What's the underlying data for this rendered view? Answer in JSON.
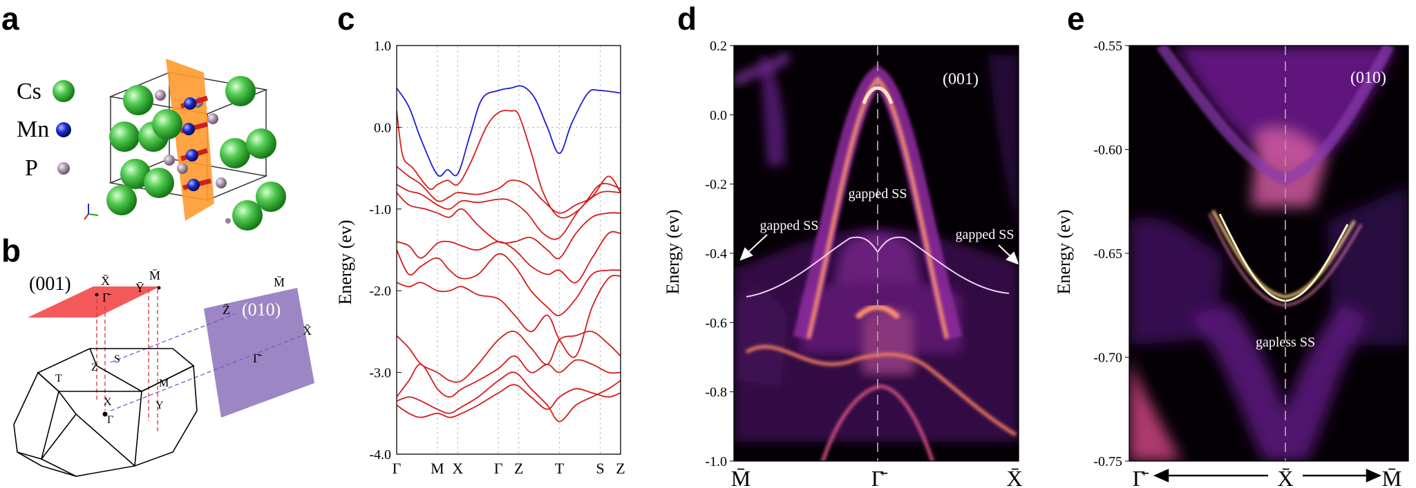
{
  "panel_labels": {
    "a": "a",
    "b": "b",
    "c": "c",
    "d": "d",
    "e": "e"
  },
  "panel_a": {
    "legend": [
      {
        "label": "Cs",
        "color": "#3cb83c"
      },
      {
        "label": "Mn",
        "color": "#1c2ccc"
      },
      {
        "label": "P",
        "color": "#b098b0"
      }
    ],
    "plane_color": "#ff9a2e",
    "moment_color": "#cc2020"
  },
  "panel_b": {
    "surface_001": {
      "label": "(001)",
      "kpoints": [
        "X̄",
        "Ȳ",
        "M̄",
        "Γ̄"
      ],
      "color": "#f45a5a"
    },
    "surface_010": {
      "label": "(010)",
      "kpoints": [
        "Z̄",
        "M̄",
        "X̄",
        "Γ̄"
      ],
      "color": "#9d86c4"
    },
    "bz_kpoints": [
      "T",
      "S",
      "Z",
      "X",
      "M",
      "Y",
      "Γ"
    ]
  },
  "chart_data": [
    {
      "panel": "c",
      "type": "line",
      "title": "",
      "xlabel": "",
      "ylabel": "Energy (ev)",
      "ylim": [
        -4.0,
        1.0
      ],
      "yticks": [
        "1.0",
        "0.0",
        "-1.0",
        "-2.0",
        "-3.0",
        "-4.0"
      ],
      "yticks_num": [
        1.0,
        0.0,
        -1.0,
        -2.0,
        -3.0,
        -4.0
      ],
      "xticks": [
        "Γ",
        "M",
        "X",
        "Γ",
        "Z",
        "T",
        "S",
        "Z"
      ],
      "xtick_pos": [
        0,
        1,
        1.5,
        2.5,
        3.0,
        4.0,
        5.0,
        5.5
      ],
      "xlim": [
        0,
        5.5
      ],
      "fermi_level": 0.0,
      "series": [
        {
          "name": "conduction",
          "color": "#1a1ad6",
          "x": [
            0,
            0.3,
            0.6,
            1.0,
            1.25,
            1.5,
            1.8,
            2.1,
            2.5,
            2.8,
            3.1,
            3.4,
            3.7,
            4.0,
            4.3,
            4.7,
            5.0,
            5.5
          ],
          "y": [
            0.48,
            0.25,
            -0.15,
            -0.58,
            -0.52,
            -0.57,
            -0.1,
            0.35,
            0.45,
            0.48,
            0.5,
            0.35,
            0.0,
            -0.32,
            0.05,
            0.42,
            0.45,
            0.42
          ]
        },
        {
          "name": "v1",
          "color": "#d61a1a",
          "x": [
            0,
            0.15,
            0.4,
            0.8,
            1.0,
            1.25,
            1.5,
            1.8,
            2.2,
            2.5,
            2.8,
            3.0,
            3.3,
            3.6,
            4.0,
            4.5,
            5.0,
            5.5
          ],
          "y": [
            0.2,
            -0.35,
            -0.5,
            -0.75,
            -0.7,
            -0.65,
            -0.7,
            -0.45,
            0.0,
            0.18,
            0.2,
            0.15,
            -0.3,
            -0.8,
            -1.1,
            -1.0,
            -0.7,
            -0.75
          ]
        },
        {
          "name": "v2",
          "color": "#d61a1a",
          "x": [
            0,
            0.3,
            0.6,
            1.0,
            1.3,
            1.5,
            2.0,
            2.5,
            2.8,
            3.2,
            3.6,
            4.0,
            4.4,
            4.8,
            5.2,
            5.5
          ],
          "y": [
            -0.48,
            -0.6,
            -0.7,
            -0.9,
            -0.85,
            -0.8,
            -0.82,
            -0.75,
            -0.65,
            -0.7,
            -0.9,
            -1.05,
            -0.95,
            -0.85,
            -0.6,
            -0.8
          ]
        },
        {
          "name": "v3",
          "color": "#d61a1a",
          "x": [
            0,
            0.3,
            0.6,
            1.0,
            1.3,
            1.6,
            2.0,
            2.5,
            2.8,
            3.2,
            3.6,
            4.0,
            4.5,
            5.0,
            5.5
          ],
          "y": [
            -0.7,
            -0.78,
            -0.82,
            -0.95,
            -1.0,
            -0.9,
            -0.92,
            -0.88,
            -0.9,
            -1.05,
            -1.3,
            -1.35,
            -1.0,
            -0.8,
            -0.8
          ]
        },
        {
          "name": "v4",
          "color": "#d61a1a",
          "x": [
            0,
            0.3,
            0.7,
            1.0,
            1.3,
            1.6,
            2.0,
            2.5,
            2.9,
            3.3,
            3.7,
            4.0,
            4.4,
            4.8,
            5.2,
            5.5
          ],
          "y": [
            -0.8,
            -0.95,
            -1.0,
            -1.05,
            -1.1,
            -1.0,
            -1.2,
            -1.4,
            -1.4,
            -1.35,
            -1.5,
            -1.6,
            -1.3,
            -1.1,
            -1.05,
            -1.05
          ]
        },
        {
          "name": "v5",
          "color": "#d61a1a",
          "x": [
            0,
            0.3,
            0.6,
            1.0,
            1.3,
            1.6,
            2.0,
            2.5,
            2.9,
            3.3,
            3.7,
            4.0,
            4.4,
            4.8,
            5.2,
            5.5
          ],
          "y": [
            -1.4,
            -1.45,
            -1.6,
            -1.42,
            -1.4,
            -1.45,
            -1.5,
            -1.4,
            -1.5,
            -1.7,
            -1.8,
            -1.75,
            -1.9,
            -1.6,
            -1.3,
            -1.3
          ]
        },
        {
          "name": "v6",
          "color": "#d61a1a",
          "x": [
            0,
            0.3,
            0.6,
            1.0,
            1.3,
            1.6,
            2.0,
            2.5,
            2.9,
            3.3,
            3.7,
            4.0,
            4.4,
            4.8,
            5.2,
            5.5
          ],
          "y": [
            -1.5,
            -1.8,
            -1.7,
            -1.6,
            -1.75,
            -1.85,
            -1.8,
            -1.55,
            -1.7,
            -2.0,
            -2.2,
            -2.3,
            -2.1,
            -1.8,
            -1.75,
            -1.75
          ]
        },
        {
          "name": "v7",
          "color": "#d61a1a",
          "x": [
            0,
            0.3,
            0.6,
            1.0,
            1.3,
            1.6,
            2.0,
            2.5,
            2.9,
            3.3,
            3.7,
            4.0,
            4.4,
            4.8,
            5.2,
            5.5
          ],
          "y": [
            -1.9,
            -1.95,
            -1.9,
            -2.0,
            -2.0,
            -1.95,
            -2.05,
            -2.1,
            -2.3,
            -2.5,
            -2.3,
            -2.6,
            -2.8,
            -2.2,
            -1.85,
            -1.82
          ]
        },
        {
          "name": "v8",
          "color": "#d61a1a",
          "x": [
            0,
            0.3,
            0.6,
            1.0,
            1.3,
            1.6,
            2.0,
            2.5,
            2.9,
            3.3,
            3.7,
            4.0,
            4.4,
            4.8,
            5.2,
            5.5
          ],
          "y": [
            -2.55,
            -2.7,
            -2.9,
            -3.0,
            -3.1,
            -3.1,
            -2.9,
            -2.6,
            -2.5,
            -2.7,
            -2.9,
            -2.6,
            -2.55,
            -2.5,
            -2.65,
            -2.8
          ]
        },
        {
          "name": "v9",
          "color": "#d61a1a",
          "x": [
            0,
            0.3,
            0.6,
            1.0,
            1.3,
            1.6,
            2.0,
            2.5,
            2.9,
            3.3,
            3.7,
            4.0,
            4.4,
            4.8,
            5.2,
            5.5
          ],
          "y": [
            -3.3,
            -3.1,
            -2.9,
            -3.2,
            -3.3,
            -3.2,
            -3.1,
            -2.95,
            -2.8,
            -3.0,
            -2.9,
            -3.0,
            -2.85,
            -2.9,
            -3.0,
            -3.0
          ]
        },
        {
          "name": "v10",
          "color": "#d61a1a",
          "x": [
            0,
            0.3,
            0.6,
            1.0,
            1.3,
            1.6,
            2.0,
            2.5,
            2.9,
            3.3,
            3.7,
            4.0,
            4.4,
            4.8,
            5.2,
            5.5
          ],
          "y": [
            -3.35,
            -3.3,
            -3.35,
            -3.45,
            -3.5,
            -3.42,
            -3.3,
            -3.1,
            -3.0,
            -3.2,
            -3.4,
            -3.6,
            -3.4,
            -3.3,
            -3.2,
            -3.1
          ]
        },
        {
          "name": "v11",
          "color": "#d61a1a",
          "x": [
            0,
            0.3,
            0.6,
            1.0,
            1.3,
            1.6,
            2.0,
            2.5,
            2.9,
            3.3,
            3.7,
            4.0,
            4.4,
            4.8,
            5.2,
            5.5
          ],
          "y": [
            -3.4,
            -3.5,
            -3.55,
            -3.5,
            -3.55,
            -3.5,
            -3.4,
            -3.25,
            -3.15,
            -3.3,
            -3.45,
            -3.3,
            -3.2,
            -3.25,
            -3.3,
            -3.25
          ]
        }
      ]
    },
    {
      "panel": "d",
      "type": "heatmap",
      "title": "(001)",
      "xlabel": "",
      "ylabel": "Energy (ev)",
      "ylim": [
        -1.0,
        0.2
      ],
      "yticks": [
        "0.2",
        "0.0",
        "-0.2",
        "-0.4",
        "-0.6",
        "-0.8",
        "-1.0"
      ],
      "yticks_num": [
        0.2,
        0.0,
        -0.2,
        -0.4,
        -0.6,
        -0.8,
        -1.0
      ],
      "xticks": [
        "M̄",
        "Γ̄",
        "X̄"
      ],
      "annotations": [
        {
          "text": "gapped SS"
        },
        {
          "text": "gapped SS"
        },
        {
          "text": "gapped SS"
        }
      ]
    },
    {
      "panel": "e",
      "type": "heatmap",
      "title": "(010)",
      "xlabel": "",
      "ylabel": "Energy (ev)",
      "ylim": [
        -0.75,
        -0.55
      ],
      "yticks": [
        "-0.55",
        "-0.60",
        "-0.65",
        "-0.70",
        "-0.75"
      ],
      "yticks_num": [
        -0.55,
        -0.6,
        -0.65,
        -0.7,
        -0.75
      ],
      "xticks": [
        "Γ̄",
        "X̄",
        "M̄"
      ],
      "annotations": [
        {
          "text": "gapless SS"
        }
      ]
    }
  ]
}
